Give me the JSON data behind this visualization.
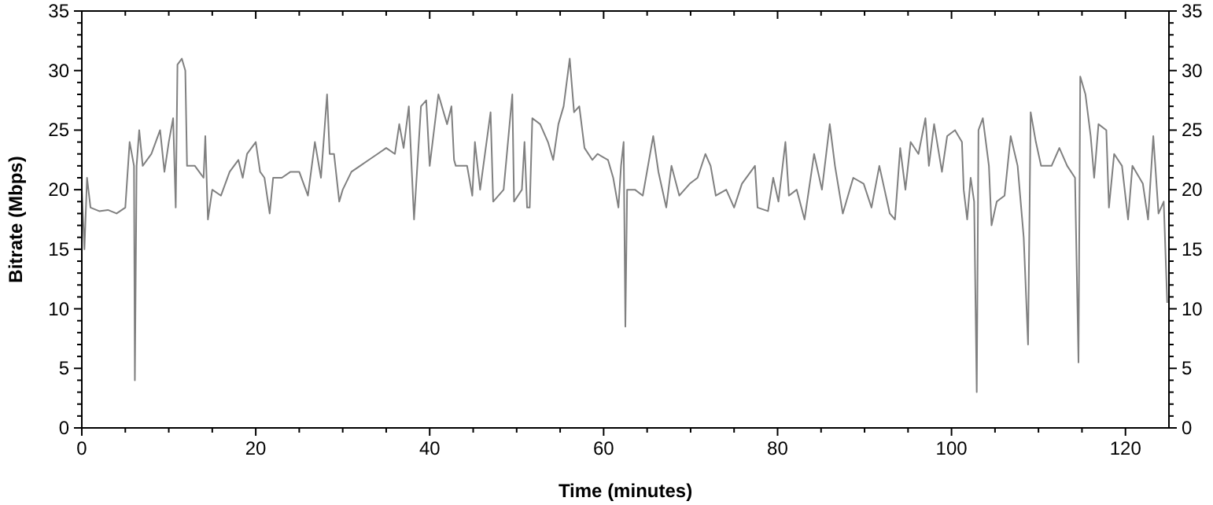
{
  "chart_data": {
    "type": "line",
    "xlabel": "Time (minutes)",
    "ylabel": "Bitrate (Mbps)",
    "xlim": [
      0,
      125
    ],
    "ylim": [
      0,
      35
    ],
    "y2lim": [
      0,
      35
    ],
    "xticks": [
      0,
      {
        "value": 5,
        "label": null
      },
      {
        "value": 10,
        "label": null
      },
      {
        "value": 15,
        "label": null
      },
      20,
      {
        "value": 25,
        "label": null
      },
      {
        "value": 30,
        "label": null
      },
      {
        "value": 35,
        "label": null
      },
      40,
      {
        "value": 45,
        "label": null
      },
      {
        "value": 50,
        "label": null
      },
      {
        "value": 55,
        "label": null
      },
      60,
      {
        "value": 65,
        "label": null
      },
      {
        "value": 70,
        "label": null
      },
      {
        "value": 75,
        "label": null
      },
      80,
      {
        "value": 85,
        "label": null
      },
      {
        "value": 90,
        "label": null
      },
      {
        "value": 95,
        "label": null
      },
      100,
      {
        "value": 105,
        "label": null
      },
      {
        "value": 110,
        "label": null
      },
      {
        "value": 115,
        "label": null
      },
      120
    ],
    "yticks": [
      0,
      {
        "value": 1,
        "label": null
      },
      {
        "value": 2,
        "label": null
      },
      {
        "value": 3,
        "label": null
      },
      {
        "value": 4,
        "label": null
      },
      5,
      {
        "value": 6,
        "label": null
      },
      {
        "value": 7,
        "label": null
      },
      {
        "value": 8,
        "label": null
      },
      {
        "value": 9,
        "label": null
      },
      10,
      {
        "value": 11,
        "label": null
      },
      {
        "value": 12,
        "label": null
      },
      {
        "value": 13,
        "label": null
      },
      {
        "value": 14,
        "label": null
      },
      15,
      {
        "value": 16,
        "label": null
      },
      {
        "value": 17,
        "label": null
      },
      {
        "value": 18,
        "label": null
      },
      {
        "value": 19,
        "label": null
      },
      20,
      {
        "value": 21,
        "label": null
      },
      {
        "value": 22,
        "label": null
      },
      {
        "value": 23,
        "label": null
      },
      {
        "value": 24,
        "label": null
      },
      25,
      {
        "value": 26,
        "label": null
      },
      {
        "value": 27,
        "label": null
      },
      {
        "value": 28,
        "label": null
      },
      {
        "value": 29,
        "label": null
      },
      30,
      {
        "value": 31,
        "label": null
      },
      {
        "value": 32,
        "label": null
      },
      {
        "value": 33,
        "label": null
      },
      {
        "value": 34,
        "label": null
      },
      35
    ],
    "y2ticks": [
      0,
      {
        "value": 1,
        "label": null
      },
      {
        "value": 2,
        "label": null
      },
      {
        "value": 3,
        "label": null
      },
      {
        "value": 4,
        "label": null
      },
      5,
      {
        "value": 6,
        "label": null
      },
      {
        "value": 7,
        "label": null
      },
      {
        "value": 8,
        "label": null
      },
      {
        "value": 9,
        "label": null
      },
      10,
      {
        "value": 11,
        "label": null
      },
      {
        "value": 12,
        "label": null
      },
      {
        "value": 13,
        "label": null
      },
      {
        "value": 14,
        "label": null
      },
      15,
      {
        "value": 16,
        "label": null
      },
      {
        "value": 17,
        "label": null
      },
      {
        "value": 18,
        "label": null
      },
      {
        "value": 19,
        "label": null
      },
      20,
      {
        "value": 21,
        "label": null
      },
      {
        "value": 22,
        "label": null
      },
      {
        "value": 23,
        "label": null
      },
      {
        "value": 24,
        "label": null
      },
      25,
      {
        "value": 26,
        "label": null
      },
      {
        "value": 27,
        "label": null
      },
      {
        "value": 28,
        "label": null
      },
      {
        "value": 29,
        "label": null
      },
      30,
      {
        "value": 31,
        "label": null
      },
      {
        "value": 32,
        "label": null
      },
      {
        "value": 33,
        "label": null
      },
      {
        "value": 34,
        "label": null
      },
      35
    ],
    "grid": false,
    "marker": "none",
    "line_style": "solid",
    "series": [
      {
        "color": "#808080",
        "x": [
          0,
          0.3,
          0.6,
          1,
          2,
          3,
          4,
          5,
          5.5,
          6.0,
          6.1,
          6.3,
          6.6,
          7,
          8,
          9,
          9.5,
          10,
          10.5,
          10.8,
          11,
          11.5,
          11.9,
          12.1,
          13,
          14,
          14.2,
          14.5,
          15,
          16,
          17,
          18,
          18.5,
          19,
          20,
          20.5,
          21,
          21.6,
          22,
          23,
          24,
          25,
          26,
          26.8,
          27.5,
          28.2,
          28.5,
          29,
          29.6,
          30,
          31,
          32,
          33,
          34,
          35,
          36,
          36.5,
          37,
          37.6,
          38.2,
          39,
          39.6,
          40,
          41,
          42,
          42.5,
          42.8,
          43,
          44.3,
          44.9,
          45.2,
          45.8,
          47,
          47.3,
          48.5,
          49.5,
          49.7,
          50.6,
          50.9,
          51.2,
          51.5,
          51.8,
          52.7,
          53.6,
          54.2,
          54.8,
          55.4,
          56.1,
          56.6,
          57.2,
          57.8,
          58.7,
          59.3,
          60.5,
          61.1,
          61.7,
          62,
          62.3,
          62.5,
          62.7,
          63.6,
          64.5,
          65.1,
          65.7,
          66.3,
          67.2,
          67.8,
          68.7,
          69.9,
          70.8,
          71.7,
          72.3,
          72.9,
          74.1,
          75,
          75.9,
          77.4,
          77.7,
          78.9,
          79.5,
          80.1,
          80.9,
          81.3,
          82.2,
          83.1,
          84.2,
          85.1,
          86,
          86.6,
          87.5,
          88.7,
          89.9,
          90.8,
          91.7,
          92.9,
          93.5,
          94.1,
          94.7,
          95.3,
          96.2,
          97,
          97.4,
          98,
          98.9,
          99.5,
          100.4,
          101.2,
          101.4,
          101.8,
          102.2,
          102.6,
          102.9,
          103.1,
          103.6,
          104.3,
          104.6,
          105.2,
          106.1,
          106.8,
          107.6,
          108.3,
          108.8,
          109.1,
          109.7,
          110.3,
          111.5,
          112.4,
          113.3,
          114.2,
          114.6,
          114.8,
          115.4,
          116,
          116.4,
          116.9,
          117.8,
          118.1,
          118.7,
          119.6,
          120.3,
          120.8,
          122,
          122.6,
          123.2,
          123.8,
          124.4,
          124.8
        ],
        "values": [
          20,
          15,
          21,
          18.5,
          18.2,
          18.3,
          18,
          18.5,
          24,
          22,
          4,
          22,
          25,
          22,
          23,
          25,
          21.5,
          24,
          26,
          18.5,
          30.5,
          31,
          30,
          22,
          22,
          21,
          24.5,
          17.5,
          20,
          19.5,
          21.5,
          22.5,
          21,
          23,
          24,
          21.5,
          21,
          18,
          21,
          21,
          21.5,
          21.5,
          19.5,
          24,
          21,
          28,
          23,
          23,
          19,
          20,
          21.5,
          22,
          22.5,
          23,
          23.5,
          23,
          25.5,
          23.5,
          27,
          17.5,
          27,
          27.5,
          22,
          28,
          25.5,
          27,
          22.5,
          22,
          22,
          19.5,
          24,
          20,
          26.5,
          19,
          20,
          28,
          19,
          20,
          24,
          18.5,
          18.5,
          26,
          25.5,
          24,
          22.5,
          25.5,
          27,
          31,
          26.5,
          27,
          23.5,
          22.5,
          23,
          22.5,
          21,
          18.5,
          22,
          24,
          8.5,
          20,
          20,
          19.5,
          22,
          24.5,
          21.5,
          18.5,
          22,
          19.5,
          20.5,
          21,
          23,
          22,
          19.5,
          20,
          18.5,
          20.5,
          22,
          18.5,
          18.2,
          21,
          19,
          24,
          19.5,
          20,
          17.5,
          23,
          20,
          25.5,
          22,
          18,
          21,
          20.5,
          18.5,
          22,
          18,
          17.5,
          23.5,
          20,
          24,
          23,
          26,
          22,
          25.5,
          21.5,
          24.5,
          25,
          24,
          20,
          17.5,
          21,
          19,
          3,
          25,
          26,
          22,
          17,
          19,
          19.5,
          24.5,
          22,
          16,
          7,
          26.5,
          24,
          22,
          22,
          23.5,
          22,
          21,
          5.5,
          29.5,
          28,
          24.5,
          21,
          25.5,
          25,
          18.5,
          23,
          22,
          17.5,
          22,
          20.5,
          17.5,
          24.5,
          18,
          19,
          10.5
        ]
      }
    ]
  }
}
